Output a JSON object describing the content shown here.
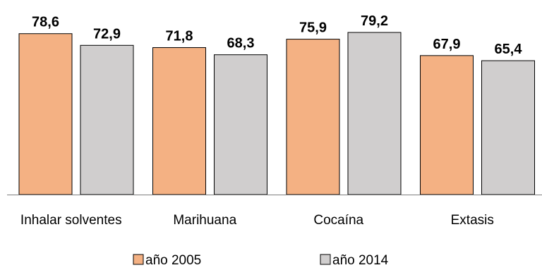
{
  "chart_data": {
    "type": "bar",
    "title": "",
    "xlabel": "",
    "ylabel": "",
    "categories": [
      "Inhalar solventes",
      "Marihuana",
      "Cocaína",
      "Extasis"
    ],
    "series": [
      {
        "name": "año 2005",
        "values": [
          78.6,
          71.8,
          75.9,
          67.9
        ],
        "labels": [
          "78,6",
          "71,8",
          "75,9",
          "67,9"
        ],
        "color": "#F4B183"
      },
      {
        "name": "año 2014",
        "values": [
          72.9,
          68.3,
          79.2,
          65.4
        ],
        "labels": [
          "72,9",
          "68,3",
          "79,2",
          "65,4"
        ],
        "color": "#D0CECE"
      }
    ],
    "ylim": [
      0,
      85
    ],
    "grid": false,
    "legend": "bottom",
    "axis_color": "#7F7F7F",
    "bar_stroke": "#000000"
  }
}
